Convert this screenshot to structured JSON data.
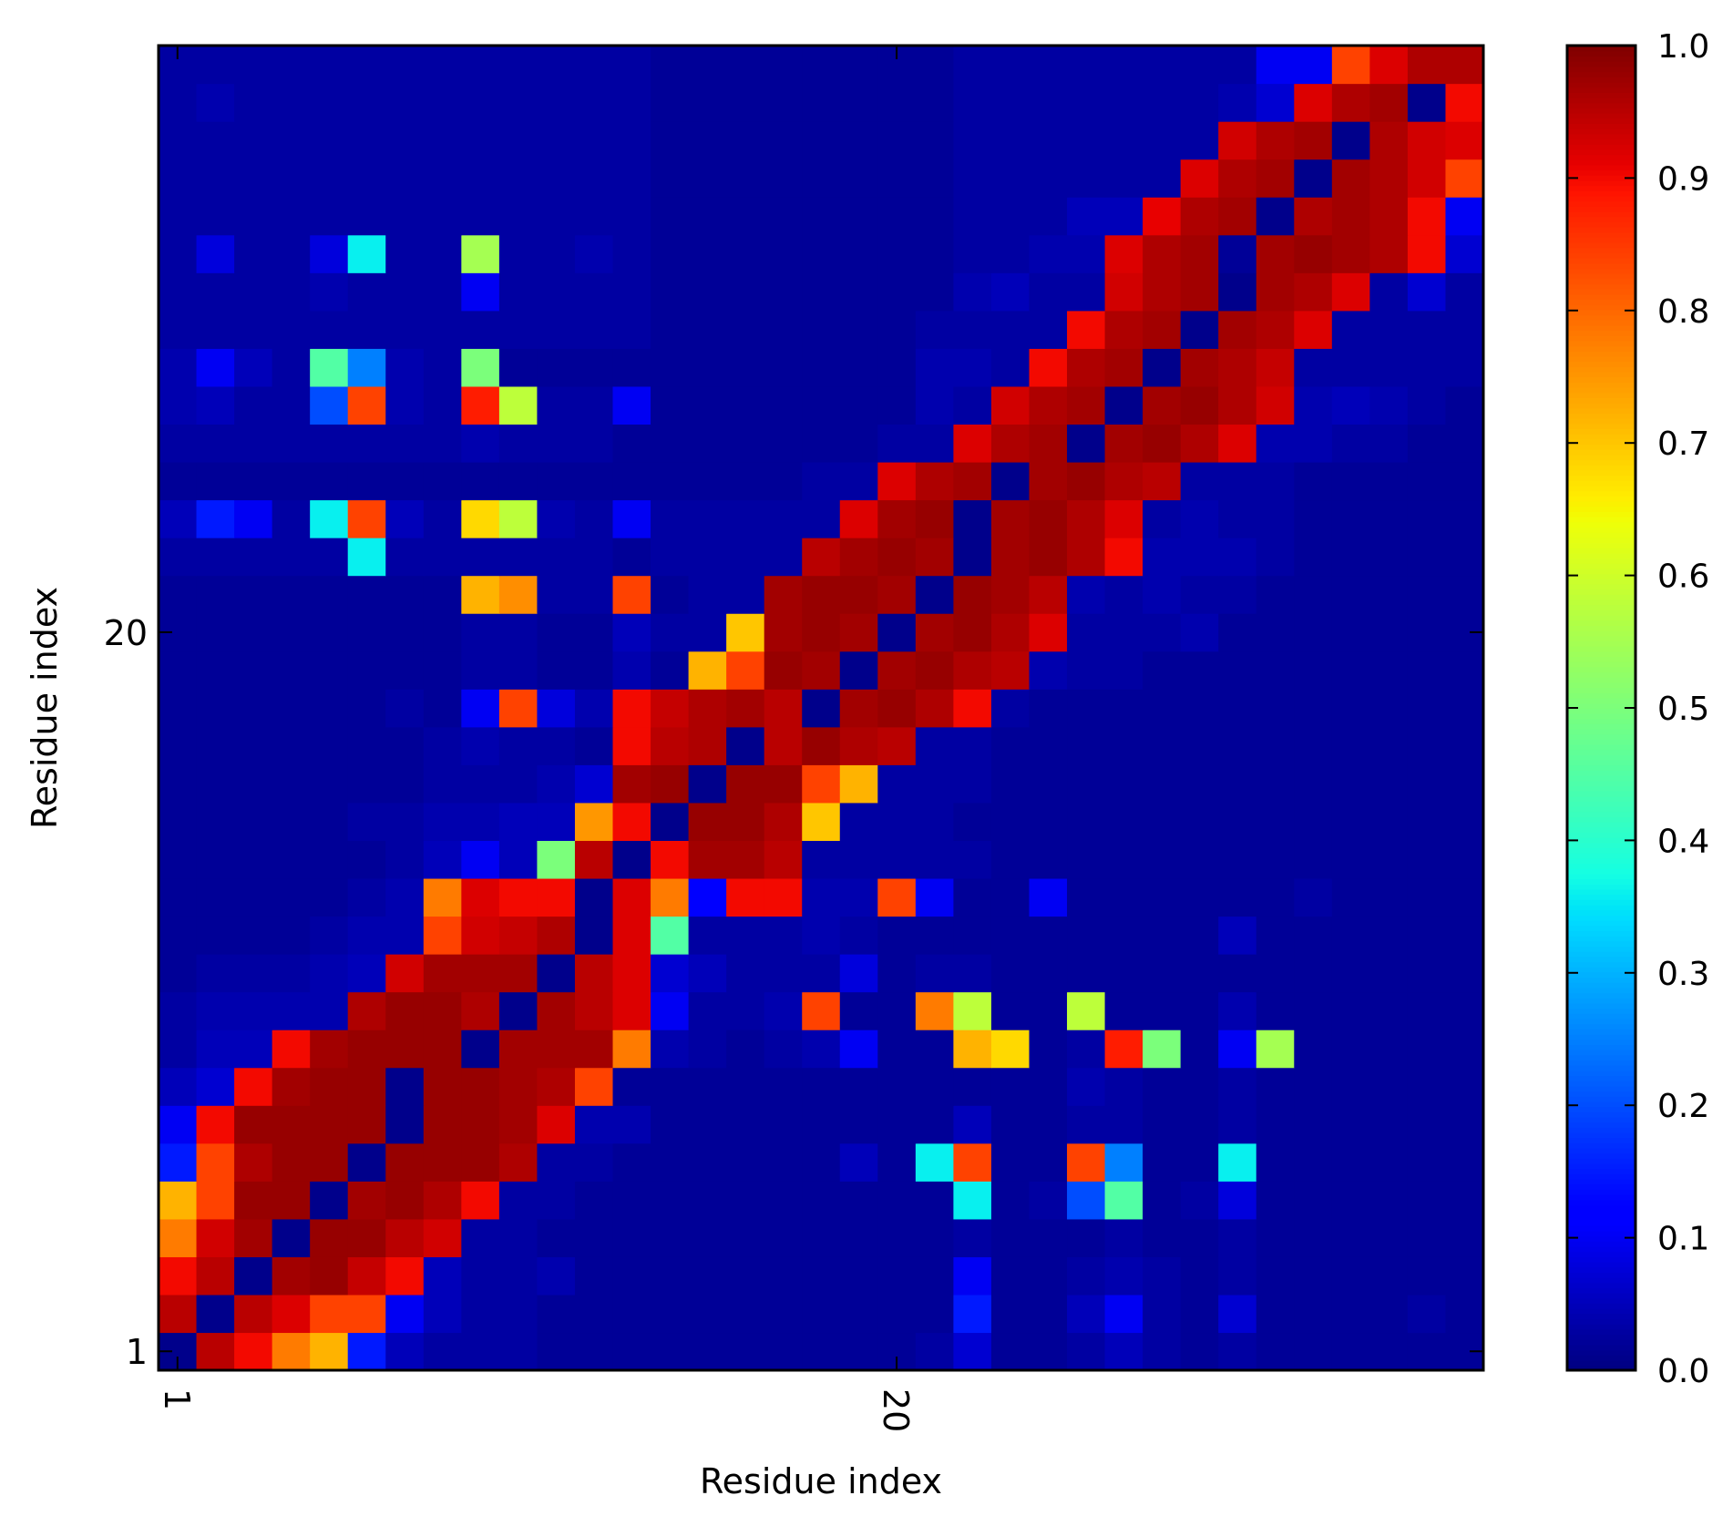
{
  "chart_data": {
    "type": "heatmap",
    "title": "",
    "xlabel": "Residue index",
    "ylabel": "Residue index",
    "x_tick_labels": [
      "1",
      "20"
    ],
    "y_tick_labels": [
      "1",
      "20"
    ],
    "x_ticks_residue": [
      1,
      20
    ],
    "y_ticks_residue": [
      1,
      20
    ],
    "n_residues": 35,
    "first_residue": 1,
    "rows_bottom_to_top": true,
    "colormap": "jet",
    "vmin": 0.0,
    "vmax": 1.0,
    "colorbar_ticks": [
      0.0,
      0.1,
      0.2,
      0.3,
      0.4,
      0.5,
      0.6,
      0.7,
      0.8,
      0.9,
      1.0
    ],
    "colorbar_tick_labels": [
      "0.0",
      "0.1",
      "0.2",
      "0.3",
      "0.4",
      "0.5",
      "0.6",
      "0.7",
      "0.8",
      "0.9",
      "1.0"
    ],
    "values": [
      [
        0.01,
        0.95,
        0.9,
        0.78,
        0.72,
        0.15,
        0.05,
        0.03,
        0.03,
        0.03,
        0.02,
        0.02,
        0.02,
        0.02,
        0.02,
        0.02,
        0.02,
        0.02,
        0.02,
        0.02,
        0.03,
        0.07,
        0.02,
        0.02,
        0.03,
        0.05,
        0.03,
        0.02,
        0.03,
        0.02,
        0.02,
        0.02,
        0.02,
        0.02,
        0.02
      ],
      [
        0.95,
        0.01,
        0.95,
        0.92,
        0.84,
        0.84,
        0.1,
        0.05,
        0.03,
        0.03,
        0.02,
        0.02,
        0.02,
        0.02,
        0.02,
        0.02,
        0.02,
        0.02,
        0.02,
        0.02,
        0.02,
        0.15,
        0.02,
        0.02,
        0.05,
        0.1,
        0.03,
        0.02,
        0.07,
        0.02,
        0.02,
        0.02,
        0.02,
        0.03,
        0.02
      ],
      [
        0.9,
        0.95,
        0.01,
        0.97,
        0.98,
        0.94,
        0.9,
        0.05,
        0.03,
        0.03,
        0.04,
        0.02,
        0.02,
        0.02,
        0.02,
        0.02,
        0.02,
        0.02,
        0.02,
        0.02,
        0.02,
        0.1,
        0.02,
        0.02,
        0.03,
        0.04,
        0.03,
        0.02,
        0.03,
        0.02,
        0.02,
        0.02,
        0.02,
        0.02,
        0.02
      ],
      [
        0.78,
        0.93,
        0.97,
        0.01,
        0.98,
        0.98,
        0.95,
        0.93,
        0.03,
        0.03,
        0.02,
        0.02,
        0.02,
        0.02,
        0.02,
        0.02,
        0.02,
        0.02,
        0.02,
        0.02,
        0.02,
        0.03,
        0.02,
        0.02,
        0.02,
        0.03,
        0.02,
        0.02,
        0.03,
        0.02,
        0.02,
        0.02,
        0.02,
        0.02,
        0.02
      ],
      [
        0.72,
        0.84,
        0.98,
        0.98,
        0.01,
        0.97,
        0.98,
        0.96,
        0.9,
        0.03,
        0.03,
        0.02,
        0.02,
        0.02,
        0.02,
        0.02,
        0.02,
        0.02,
        0.02,
        0.02,
        0.02,
        0.36,
        0.02,
        0.03,
        0.2,
        0.45,
        0.02,
        0.03,
        0.08,
        0.02,
        0.02,
        0.02,
        0.02,
        0.02,
        0.02
      ],
      [
        0.15,
        0.84,
        0.96,
        0.98,
        0.98,
        0.01,
        0.98,
        0.98,
        0.98,
        0.96,
        0.03,
        0.03,
        0.02,
        0.02,
        0.02,
        0.02,
        0.02,
        0.02,
        0.05,
        0.02,
        0.36,
        0.84,
        0.02,
        0.02,
        0.84,
        0.25,
        0.02,
        0.02,
        0.36,
        0.02,
        0.02,
        0.02,
        0.02,
        0.02,
        0.02
      ],
      [
        0.1,
        0.9,
        0.98,
        0.98,
        0.98,
        0.98,
        0.01,
        0.98,
        0.98,
        0.97,
        0.92,
        0.04,
        0.04,
        0.02,
        0.02,
        0.02,
        0.02,
        0.02,
        0.02,
        0.02,
        0.02,
        0.05,
        0.02,
        0.02,
        0.03,
        0.03,
        0.02,
        0.02,
        0.03,
        0.02,
        0.02,
        0.02,
        0.02,
        0.02,
        0.02
      ],
      [
        0.05,
        0.07,
        0.9,
        0.97,
        0.98,
        0.98,
        0.01,
        0.98,
        0.98,
        0.97,
        0.96,
        0.84,
        0.02,
        0.02,
        0.02,
        0.02,
        0.02,
        0.02,
        0.02,
        0.02,
        0.02,
        0.02,
        0.02,
        0.02,
        0.04,
        0.03,
        0.02,
        0.02,
        0.03,
        0.02,
        0.02,
        0.02,
        0.02,
        0.02,
        0.02
      ],
      [
        0.03,
        0.05,
        0.05,
        0.9,
        0.97,
        0.98,
        0.98,
        0.98,
        0.01,
        0.97,
        0.97,
        0.97,
        0.78,
        0.04,
        0.03,
        0.02,
        0.03,
        0.04,
        0.1,
        0.02,
        0.02,
        0.72,
        0.68,
        0.02,
        0.03,
        0.88,
        0.5,
        0.02,
        0.1,
        0.55,
        0.02,
        0.02,
        0.02,
        0.02,
        0.02
      ],
      [
        0.03,
        0.04,
        0.04,
        0.04,
        0.04,
        0.96,
        0.98,
        0.98,
        0.96,
        0.01,
        0.97,
        0.95,
        0.92,
        0.1,
        0.03,
        0.03,
        0.04,
        0.84,
        0.02,
        0.02,
        0.78,
        0.58,
        0.02,
        0.02,
        0.58,
        0.02,
        0.02,
        0.02,
        0.04,
        0.02,
        0.02,
        0.02,
        0.02,
        0.02,
        0.02
      ],
      [
        0.02,
        0.03,
        0.03,
        0.03,
        0.04,
        0.05,
        0.93,
        0.97,
        0.97,
        0.97,
        0.01,
        0.95,
        0.92,
        0.07,
        0.05,
        0.03,
        0.03,
        0.03,
        0.08,
        0.02,
        0.03,
        0.03,
        0.02,
        0.02,
        0.02,
        0.02,
        0.02,
        0.02,
        0.02,
        0.02,
        0.02,
        0.02,
        0.02,
        0.02,
        0.02
      ],
      [
        0.02,
        0.02,
        0.02,
        0.02,
        0.03,
        0.04,
        0.04,
        0.84,
        0.93,
        0.94,
        0.96,
        0.01,
        0.92,
        0.45,
        0.03,
        0.03,
        0.03,
        0.04,
        0.03,
        0.02,
        0.02,
        0.02,
        0.02,
        0.02,
        0.02,
        0.02,
        0.02,
        0.02,
        0.05,
        0.02,
        0.02,
        0.02,
        0.02,
        0.02,
        0.02
      ],
      [
        0.02,
        0.02,
        0.02,
        0.02,
        0.02,
        0.03,
        0.04,
        0.78,
        0.92,
        0.9,
        0.9,
        0.01,
        0.92,
        0.78,
        0.12,
        0.9,
        0.9,
        0.04,
        0.04,
        0.84,
        0.1,
        0.02,
        0.02,
        0.1,
        0.02,
        0.02,
        0.02,
        0.02,
        0.02,
        0.02,
        0.03,
        0.02,
        0.02,
        0.02,
        0.02
      ],
      [
        0.02,
        0.02,
        0.02,
        0.02,
        0.02,
        0.02,
        0.03,
        0.05,
        0.1,
        0.05,
        0.5,
        0.95,
        0.01,
        0.9,
        0.97,
        0.97,
        0.95,
        0.03,
        0.03,
        0.03,
        0.03,
        0.03,
        0.02,
        0.02,
        0.02,
        0.02,
        0.02,
        0.02,
        0.02,
        0.02,
        0.02,
        0.02,
        0.02,
        0.02,
        0.02
      ],
      [
        0.02,
        0.02,
        0.02,
        0.02,
        0.02,
        0.03,
        0.03,
        0.04,
        0.04,
        0.05,
        0.05,
        0.75,
        0.9,
        0.01,
        0.98,
        0.98,
        0.96,
        0.7,
        0.03,
        0.03,
        0.03,
        0.02,
        0.02,
        0.02,
        0.02,
        0.02,
        0.02,
        0.02,
        0.02,
        0.02,
        0.02,
        0.02,
        0.02,
        0.02,
        0.02
      ],
      [
        0.02,
        0.02,
        0.02,
        0.02,
        0.02,
        0.02,
        0.02,
        0.03,
        0.03,
        0.03,
        0.04,
        0.07,
        0.97,
        0.98,
        0.01,
        0.98,
        0.98,
        0.84,
        0.72,
        0.03,
        0.03,
        0.03,
        0.02,
        0.02,
        0.02,
        0.02,
        0.02,
        0.02,
        0.02,
        0.02,
        0.02,
        0.02,
        0.02,
        0.02,
        0.02
      ],
      [
        0.02,
        0.02,
        0.02,
        0.02,
        0.02,
        0.02,
        0.02,
        0.03,
        0.04,
        0.03,
        0.03,
        0.02,
        0.9,
        0.95,
        0.96,
        0.01,
        0.95,
        0.98,
        0.96,
        0.95,
        0.03,
        0.03,
        0.02,
        0.02,
        0.02,
        0.02,
        0.02,
        0.02,
        0.02,
        0.02,
        0.02,
        0.02,
        0.02,
        0.02,
        0.02
      ],
      [
        0.02,
        0.02,
        0.02,
        0.02,
        0.02,
        0.02,
        0.03,
        0.02,
        0.1,
        0.84,
        0.08,
        0.04,
        0.9,
        0.94,
        0.96,
        0.97,
        0.95,
        0.01,
        0.97,
        0.98,
        0.96,
        0.9,
        0.03,
        0.02,
        0.02,
        0.02,
        0.02,
        0.02,
        0.02,
        0.02,
        0.02,
        0.02,
        0.02,
        0.02,
        0.02
      ],
      [
        0.02,
        0.02,
        0.02,
        0.02,
        0.02,
        0.02,
        0.02,
        0.02,
        0.03,
        0.03,
        0.02,
        0.02,
        0.04,
        0.02,
        0.72,
        0.84,
        0.98,
        0.97,
        0.01,
        0.97,
        0.98,
        0.96,
        0.95,
        0.04,
        0.03,
        0.03,
        0.02,
        0.02,
        0.02,
        0.02,
        0.02,
        0.02,
        0.02,
        0.02,
        0.02
      ],
      [
        0.02,
        0.02,
        0.02,
        0.02,
        0.02,
        0.02,
        0.02,
        0.02,
        0.03,
        0.03,
        0.02,
        0.02,
        0.05,
        0.03,
        0.03,
        0.7,
        0.97,
        0.98,
        0.97,
        0.01,
        0.97,
        0.98,
        0.96,
        0.92,
        0.03,
        0.03,
        0.03,
        0.04,
        0.02,
        0.02,
        0.02,
        0.02,
        0.02,
        0.02,
        0.02
      ],
      [
        0.02,
        0.02,
        0.02,
        0.02,
        0.02,
        0.02,
        0.02,
        0.02,
        0.72,
        0.76,
        0.03,
        0.03,
        0.84,
        0.02,
        0.03,
        0.03,
        0.97,
        0.98,
        0.98,
        0.97,
        0.01,
        0.98,
        0.97,
        0.95,
        0.04,
        0.03,
        0.04,
        0.03,
        0.03,
        0.02,
        0.02,
        0.02,
        0.02,
        0.02,
        0.02
      ],
      [
        0.03,
        0.03,
        0.03,
        0.03,
        0.03,
        0.36,
        0.03,
        0.03,
        0.03,
        0.03,
        0.03,
        0.03,
        0.02,
        0.03,
        0.03,
        0.03,
        0.03,
        0.95,
        0.97,
        0.98,
        0.97,
        0.01,
        0.97,
        0.98,
        0.96,
        0.9,
        0.04,
        0.04,
        0.04,
        0.03,
        0.02,
        0.02,
        0.02,
        0.02,
        0.02
      ],
      [
        0.05,
        0.15,
        0.1,
        0.03,
        0.36,
        0.84,
        0.05,
        0.03,
        0.68,
        0.58,
        0.04,
        0.03,
        0.1,
        0.03,
        0.03,
        0.03,
        0.03,
        0.03,
        0.92,
        0.97,
        0.98,
        0.01,
        0.97,
        0.98,
        0.96,
        0.92,
        0.03,
        0.04,
        0.03,
        0.03,
        0.02,
        0.02,
        0.02,
        0.02,
        0.02
      ],
      [
        0.02,
        0.02,
        0.02,
        0.02,
        0.02,
        0.02,
        0.02,
        0.02,
        0.02,
        0.02,
        0.02,
        0.02,
        0.02,
        0.02,
        0.02,
        0.02,
        0.02,
        0.03,
        0.03,
        0.92,
        0.96,
        0.97,
        0.01,
        0.97,
        0.98,
        0.96,
        0.95,
        0.03,
        0.03,
        0.03,
        0.02,
        0.02,
        0.02,
        0.02,
        0.02
      ],
      [
        0.03,
        0.03,
        0.03,
        0.03,
        0.03,
        0.03,
        0.03,
        0.03,
        0.04,
        0.03,
        0.03,
        0.03,
        0.02,
        0.02,
        0.02,
        0.02,
        0.02,
        0.02,
        0.02,
        0.03,
        0.03,
        0.92,
        0.96,
        0.97,
        0.01,
        0.97,
        0.98,
        0.96,
        0.92,
        0.04,
        0.04,
        0.03,
        0.03,
        0.02,
        0.02
      ],
      [
        0.04,
        0.05,
        0.03,
        0.03,
        0.2,
        0.84,
        0.04,
        0.03,
        0.88,
        0.58,
        0.03,
        0.03,
        0.1,
        0.02,
        0.02,
        0.02,
        0.02,
        0.02,
        0.02,
        0.02,
        0.04,
        0.03,
        0.93,
        0.96,
        0.97,
        0.01,
        0.97,
        0.98,
        0.96,
        0.93,
        0.04,
        0.05,
        0.04,
        0.03,
        0.02
      ],
      [
        0.04,
        0.1,
        0.05,
        0.03,
        0.45,
        0.25,
        0.04,
        0.03,
        0.5,
        0.02,
        0.02,
        0.02,
        0.02,
        0.02,
        0.02,
        0.02,
        0.02,
        0.02,
        0.02,
        0.02,
        0.04,
        0.04,
        0.03,
        0.9,
        0.96,
        0.97,
        0.01,
        0.97,
        0.96,
        0.94,
        0.03,
        0.03,
        0.03,
        0.03,
        0.03
      ],
      [
        0.03,
        0.03,
        0.03,
        0.03,
        0.03,
        0.03,
        0.03,
        0.03,
        0.03,
        0.03,
        0.03,
        0.03,
        0.03,
        0.02,
        0.02,
        0.02,
        0.02,
        0.02,
        0.02,
        0.02,
        0.03,
        0.03,
        0.03,
        0.03,
        0.9,
        0.96,
        0.97,
        0.01,
        0.97,
        0.96,
        0.92,
        0.03,
        0.03,
        0.03,
        0.03
      ],
      [
        0.03,
        0.03,
        0.03,
        0.03,
        0.04,
        0.03,
        0.03,
        0.03,
        0.1,
        0.03,
        0.03,
        0.03,
        0.03,
        0.02,
        0.02,
        0.02,
        0.02,
        0.02,
        0.02,
        0.02,
        0.02,
        0.04,
        0.05,
        0.03,
        0.03,
        0.93,
        0.96,
        0.97,
        0.01,
        0.97,
        0.96,
        0.92,
        0.03,
        0.07,
        0.03
      ],
      [
        0.03,
        0.08,
        0.03,
        0.03,
        0.08,
        0.36,
        0.03,
        0.03,
        0.55,
        0.03,
        0.03,
        0.04,
        0.03,
        0.02,
        0.02,
        0.02,
        0.02,
        0.02,
        0.02,
        0.02,
        0.02,
        0.03,
        0.03,
        0.04,
        0.04,
        0.92,
        0.96,
        0.97,
        0.02,
        0.97,
        0.98,
        0.97,
        0.96,
        0.9,
        0.07
      ],
      [
        0.03,
        0.03,
        0.03,
        0.03,
        0.03,
        0.03,
        0.03,
        0.03,
        0.03,
        0.03,
        0.03,
        0.03,
        0.03,
        0.02,
        0.02,
        0.02,
        0.02,
        0.02,
        0.02,
        0.02,
        0.02,
        0.03,
        0.03,
        0.03,
        0.05,
        0.05,
        0.91,
        0.96,
        0.97,
        0.01,
        0.96,
        0.97,
        0.96,
        0.9,
        0.1
      ],
      [
        0.03,
        0.03,
        0.03,
        0.03,
        0.03,
        0.03,
        0.03,
        0.03,
        0.03,
        0.03,
        0.03,
        0.03,
        0.03,
        0.02,
        0.02,
        0.02,
        0.02,
        0.02,
        0.02,
        0.02,
        0.02,
        0.03,
        0.03,
        0.03,
        0.03,
        0.03,
        0.03,
        0.92,
        0.96,
        0.97,
        0.01,
        0.97,
        0.96,
        0.93,
        0.84
      ],
      [
        0.03,
        0.03,
        0.03,
        0.03,
        0.03,
        0.03,
        0.03,
        0.03,
        0.03,
        0.03,
        0.03,
        0.03,
        0.03,
        0.02,
        0.02,
        0.02,
        0.02,
        0.02,
        0.02,
        0.02,
        0.02,
        0.03,
        0.03,
        0.03,
        0.03,
        0.03,
        0.03,
        0.03,
        0.93,
        0.96,
        0.97,
        0.01,
        0.96,
        0.93,
        0.92
      ],
      [
        0.03,
        0.04,
        0.03,
        0.03,
        0.03,
        0.03,
        0.03,
        0.03,
        0.03,
        0.03,
        0.03,
        0.03,
        0.03,
        0.02,
        0.02,
        0.02,
        0.02,
        0.02,
        0.02,
        0.02,
        0.02,
        0.03,
        0.03,
        0.03,
        0.03,
        0.03,
        0.03,
        0.03,
        0.04,
        0.07,
        0.92,
        0.96,
        0.97,
        0.01,
        0.9
      ],
      [
        0.03,
        0.03,
        0.03,
        0.03,
        0.03,
        0.03,
        0.03,
        0.03,
        0.03,
        0.03,
        0.03,
        0.03,
        0.03,
        0.02,
        0.02,
        0.02,
        0.02,
        0.02,
        0.02,
        0.02,
        0.02,
        0.03,
        0.03,
        0.03,
        0.03,
        0.03,
        0.03,
        0.03,
        0.03,
        0.1,
        0.1,
        0.84,
        0.92,
        0.96,
        0.96
      ]
    ]
  }
}
